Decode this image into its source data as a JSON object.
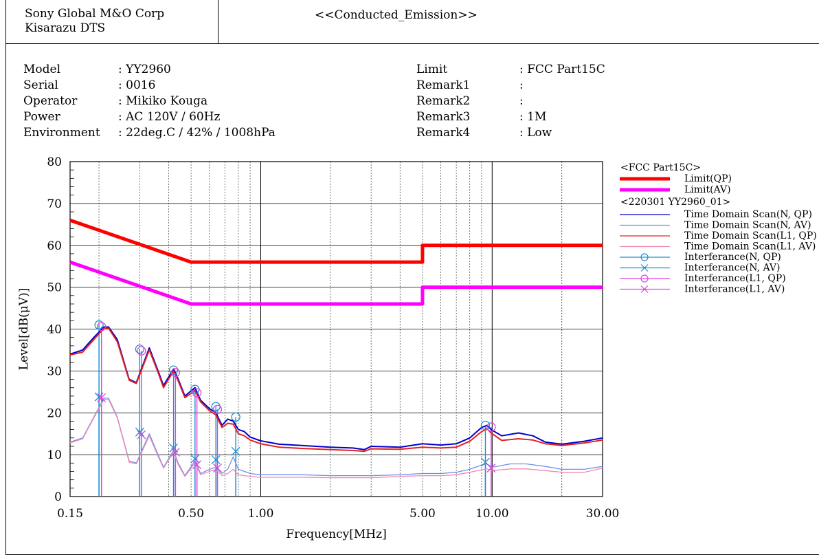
{
  "header": {
    "company_line1": "Sony Global M&O Corp",
    "company_line2": "Kisarazu DTS",
    "title": "<<Conducted_Emission>>"
  },
  "info_left": [
    {
      "key": "Model",
      "value": ": YY2960"
    },
    {
      "key": "Serial",
      "value": ": 0016"
    },
    {
      "key": "Operator",
      "value": ": Mikiko Kouga"
    },
    {
      "key": "Power",
      "value": ": AC 120V / 60Hz"
    },
    {
      "key": "Environment",
      "value": ": 22deg.C / 42% / 1008hPa"
    }
  ],
  "info_right": [
    {
      "key": "Limit",
      "value": ": FCC Part15C"
    },
    {
      "key": "Remark1",
      "value": ":"
    },
    {
      "key": "Remark2",
      "value": ":"
    },
    {
      "key": "Remark3",
      "value": ": 1M"
    },
    {
      "key": "Remark4",
      "value": ": Low"
    }
  ],
  "colors": {
    "limit_qp": "#ff0000",
    "limit_av": "#ff00ff",
    "n_qp": "#0000cc",
    "n_av": "#6f8ff0",
    "l1_qp": "#e82020",
    "l1_av": "#f08ab0",
    "interf_n": "#1a8fd0",
    "interf_l1": "#e040e0"
  },
  "chart_data": {
    "type": "line",
    "xlabel": "Frequency[MHz]",
    "ylabel": "Level[dB(μV)]",
    "xscale": "log",
    "xlim": [
      0.15,
      30
    ],
    "ylim": [
      0,
      80
    ],
    "yticks": [
      0,
      10,
      20,
      30,
      40,
      50,
      60,
      70,
      80
    ],
    "xticks": [
      {
        "value": 0.15,
        "label": "0.15"
      },
      {
        "value": 0.5,
        "label": "0.50"
      },
      {
        "value": 1,
        "label": "1.00"
      },
      {
        "value": 5,
        "label": "5.00"
      },
      {
        "value": 10,
        "label": "10.00"
      },
      {
        "value": 30,
        "label": "30.00"
      }
    ],
    "grid": true,
    "legend_groups": [
      {
        "title": "<FCC Part15C>",
        "entries": [
          "Limit(QP)",
          "Limit(AV)"
        ]
      },
      {
        "title": "<220301 YY2960_01>",
        "entries": [
          "Time Domain Scan(N, QP)",
          "Time Domain Scan(N, AV)",
          "Time Domain Scan(L1, QP)",
          "Time Domain Scan(L1, AV)",
          "Interferance(N, QP)",
          "Interferance(N, AV)",
          "Interferance(L1, QP)",
          "Interferance(L1, AV)"
        ]
      }
    ],
    "limits": [
      {
        "name": "Limit(QP)",
        "x": [
          0.15,
          0.5,
          0.5,
          5,
          5,
          30
        ],
        "y": [
          66,
          56,
          56,
          56,
          60,
          60
        ]
      },
      {
        "name": "Limit(AV)",
        "x": [
          0.15,
          0.5,
          0.5,
          5,
          5,
          30
        ],
        "y": [
          56,
          46,
          46,
          46,
          50,
          50
        ]
      }
    ],
    "series": [
      {
        "name": "Time Domain Scan(N, QP)",
        "x": [
          0.15,
          0.17,
          0.19,
          0.21,
          0.22,
          0.24,
          0.27,
          0.29,
          0.33,
          0.36,
          0.38,
          0.42,
          0.44,
          0.47,
          0.52,
          0.55,
          0.6,
          0.64,
          0.68,
          0.72,
          0.76,
          0.8,
          0.85,
          0.9,
          1,
          1.2,
          1.5,
          2,
          2.5,
          2.8,
          3,
          4,
          5,
          6,
          7,
          8,
          9,
          9.5,
          9.9,
          11,
          13,
          15,
          17,
          20,
          25,
          30
        ],
        "y": [
          34,
          35,
          38,
          40.5,
          40.5,
          37.5,
          28,
          27.2,
          35.5,
          30,
          26.5,
          30.5,
          28,
          24,
          26,
          23,
          21,
          20,
          17,
          18.5,
          18,
          16,
          15.5,
          14.2,
          13.3,
          12.5,
          12.2,
          11.8,
          11.6,
          11.2,
          12,
          11.8,
          12.6,
          12.3,
          12.6,
          14,
          16.5,
          17,
          16,
          14.5,
          15.2,
          14.5,
          13,
          12.5,
          13.2,
          14
        ]
      },
      {
        "name": "Time Domain Scan(L1, QP)",
        "x": [
          0.15,
          0.17,
          0.19,
          0.21,
          0.22,
          0.24,
          0.27,
          0.29,
          0.33,
          0.36,
          0.38,
          0.42,
          0.44,
          0.47,
          0.52,
          0.55,
          0.6,
          0.64,
          0.68,
          0.72,
          0.76,
          0.8,
          0.85,
          0.9,
          1,
          1.2,
          1.5,
          2,
          2.5,
          2.8,
          3,
          4,
          5,
          6,
          7,
          8,
          9,
          9.5,
          9.9,
          11,
          13,
          15,
          17,
          20,
          25,
          30
        ],
        "y": [
          33.8,
          34.5,
          37.5,
          40.2,
          40.2,
          37,
          27.8,
          27,
          35,
          29.6,
          26,
          30,
          27.6,
          23.6,
          25.3,
          22.6,
          20.5,
          19.5,
          16.5,
          17.5,
          17.3,
          15,
          14.5,
          13.5,
          12.6,
          11.8,
          11.5,
          11.2,
          11,
          10.8,
          11.4,
          11.3,
          11.8,
          11.6,
          11.8,
          13.2,
          15.5,
          16.2,
          15.2,
          13.4,
          13.8,
          13.5,
          12.6,
          12.2,
          12.8,
          13.5
        ]
      },
      {
        "name": "Time Domain Scan(N, AV)",
        "x": [
          0.15,
          0.17,
          0.19,
          0.21,
          0.22,
          0.24,
          0.27,
          0.29,
          0.33,
          0.36,
          0.38,
          0.42,
          0.44,
          0.47,
          0.52,
          0.55,
          0.6,
          0.64,
          0.68,
          0.72,
          0.76,
          0.8,
          0.85,
          0.9,
          1,
          1.5,
          2,
          2.5,
          3,
          4,
          5,
          6,
          7,
          8,
          9,
          9.5,
          10,
          12,
          14,
          17,
          20,
          25,
          30
        ],
        "y": [
          13,
          14,
          19,
          23.5,
          23.5,
          19,
          8.5,
          8,
          15,
          10,
          7,
          11,
          8,
          5,
          8.5,
          5.5,
          6.5,
          7,
          5.5,
          6.5,
          9.5,
          6.5,
          6,
          5.5,
          5.2,
          5.2,
          5,
          5,
          5,
          5.2,
          5.5,
          5.5,
          5.8,
          6.5,
          7.5,
          7.8,
          7,
          7.8,
          7.8,
          7.2,
          6.5,
          6.5,
          7.2
        ]
      },
      {
        "name": "Time Domain Scan(L1, AV)",
        "x": [
          0.15,
          0.17,
          0.19,
          0.21,
          0.22,
          0.24,
          0.27,
          0.29,
          0.33,
          0.36,
          0.38,
          0.42,
          0.44,
          0.47,
          0.52,
          0.55,
          0.6,
          0.64,
          0.68,
          0.72,
          0.76,
          0.8,
          0.85,
          0.9,
          1,
          1.5,
          2,
          2.5,
          3,
          4,
          5,
          6,
          7,
          8,
          9,
          9.5,
          10,
          12,
          14,
          17,
          20,
          25,
          30
        ],
        "y": [
          12.8,
          13.8,
          18.8,
          23.2,
          23.2,
          18.8,
          8.2,
          7.8,
          14.5,
          9.6,
          6.8,
          10.6,
          7.6,
          4.8,
          8,
          5.2,
          6,
          6.5,
          5,
          5.5,
          6.5,
          5.2,
          5,
          4.8,
          4.6,
          4.6,
          4.5,
          4.5,
          4.5,
          4.8,
          5,
          5,
          5.2,
          5.8,
          6.4,
          6.6,
          6.2,
          6.6,
          6.6,
          6.2,
          5.8,
          5.8,
          6.8
        ]
      }
    ],
    "interference": [
      {
        "name": "Interferance(N, QP)",
        "marker": "circle",
        "x": [
          0.2,
          0.3,
          0.42,
          0.52,
          0.64,
          0.78,
          9.35
        ],
        "y": [
          41,
          35.2,
          30.2,
          25.6,
          21.5,
          19,
          17
        ]
      },
      {
        "name": "Interferance(N, AV)",
        "marker": "x",
        "x": [
          0.2,
          0.3,
          0.42,
          0.52,
          0.64,
          0.78,
          9.35
        ],
        "y": [
          23.8,
          15.4,
          11.6,
          9,
          8.8,
          10.8,
          8.2
        ]
      },
      {
        "name": "Interferance(L1, QP)",
        "marker": "circle",
        "x": [
          0.205,
          0.305,
          0.428,
          0.53,
          0.65,
          9.9
        ],
        "y": [
          40.6,
          34.8,
          29.6,
          24.8,
          20.8,
          16.6
        ]
      },
      {
        "name": "Interferance(L1, AV)",
        "marker": "x",
        "x": [
          0.205,
          0.305,
          0.428,
          0.53,
          0.65,
          9.9
        ],
        "y": [
          23.6,
          14.8,
          10.6,
          7.6,
          6.8,
          6.8
        ]
      }
    ]
  }
}
